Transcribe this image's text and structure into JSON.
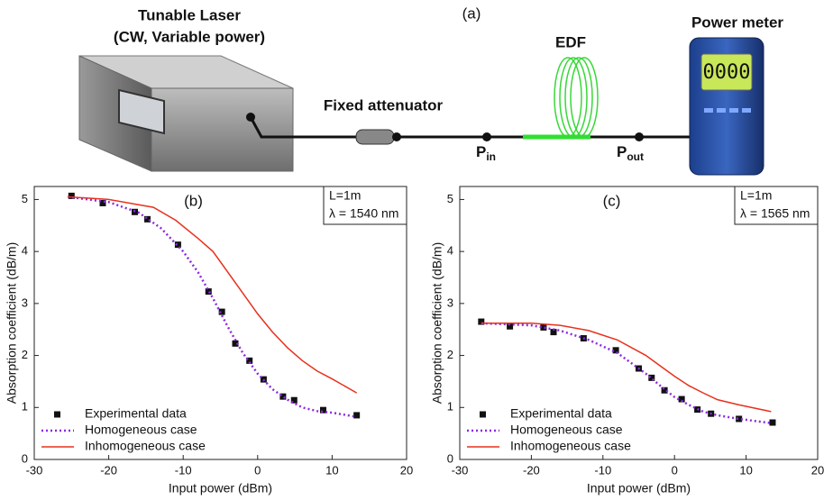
{
  "diagram": {
    "label": "(a)",
    "laser_title": "Tunable Laser",
    "laser_subtitle": "(CW, Variable power)",
    "attenuator": "Fixed attenuator",
    "fiber": "EDF",
    "meter": "Power meter",
    "meter_display": "0000",
    "p_in": {
      "main": "P",
      "sub": "in"
    },
    "p_out": {
      "main": "P",
      "sub": "out"
    }
  },
  "chart_data": [
    {
      "type": "line",
      "title": "(b)",
      "annotations": [
        "L=1m",
        "λ = 1540 nm"
      ],
      "x_label": "Input power (dBm)",
      "y_label": "Absorption coefficient (dB/m)",
      "xlim": [
        -30,
        20
      ],
      "ylim": [
        0,
        5.25
      ],
      "xticks": [
        -30,
        -20,
        -10,
        0,
        10,
        20
      ],
      "yticks": [
        0,
        1,
        2,
        3,
        4,
        5
      ],
      "legend": "lower-left",
      "series": [
        {
          "name": "Experimental data",
          "color": "#111111",
          "style": "markers",
          "x": [
            -25,
            -20.8,
            -16.5,
            -14.8,
            -10.7,
            -6.6,
            -4.8,
            -3.0,
            -1.1,
            0.8,
            3.4,
            4.9,
            8.8,
            13.3
          ],
          "values": [
            5.07,
            4.93,
            4.76,
            4.62,
            4.13,
            3.23,
            2.84,
            2.23,
            1.9,
            1.54,
            1.21,
            1.14,
            0.95,
            0.85
          ]
        },
        {
          "name": "Homogeneous case",
          "color": "#8a2be2",
          "style": "dotted",
          "x": [
            -25.5,
            -20,
            -16,
            -13,
            -10,
            -8,
            -6,
            -4,
            -2,
            0,
            2,
            4,
            6,
            8,
            10,
            13.3
          ],
          "values": [
            5.05,
            4.95,
            4.75,
            4.45,
            4.0,
            3.6,
            3.1,
            2.55,
            2.05,
            1.65,
            1.35,
            1.15,
            1.0,
            0.93,
            0.9,
            0.82
          ]
        },
        {
          "name": "Inhomogeneous case",
          "color": "#e8301c",
          "style": "solid",
          "x": [
            -25.5,
            -20,
            -16,
            -14,
            -11,
            -8,
            -6,
            -4,
            -2,
            0,
            2,
            4,
            6,
            8,
            10,
            13.3
          ],
          "values": [
            5.05,
            5.0,
            4.9,
            4.85,
            4.6,
            4.25,
            4.0,
            3.6,
            3.2,
            2.8,
            2.45,
            2.15,
            1.9,
            1.7,
            1.55,
            1.28
          ]
        }
      ]
    },
    {
      "type": "line",
      "title": "(c)",
      "annotations": [
        "L=1m",
        "λ = 1565 nm"
      ],
      "x_label": "Input power (dBm)",
      "y_label": "Absorption coefficient (dB/m)",
      "xlim": [
        -30,
        20
      ],
      "ylim": [
        0,
        5.25
      ],
      "xticks": [
        -30,
        -20,
        -10,
        0,
        10,
        20
      ],
      "yticks": [
        0,
        1,
        2,
        3,
        4,
        5
      ],
      "legend": "lower-left",
      "series": [
        {
          "name": "Experimental data",
          "color": "#111111",
          "style": "markers",
          "x": [
            -27,
            -23,
            -18.3,
            -16.9,
            -12.7,
            -8.2,
            -5,
            -3.2,
            -1.4,
            1.0,
            3.2,
            5.1,
            9.0,
            13.7
          ],
          "values": [
            2.65,
            2.56,
            2.54,
            2.45,
            2.33,
            2.1,
            1.75,
            1.57,
            1.33,
            1.16,
            0.96,
            0.88,
            0.78,
            0.71
          ]
        },
        {
          "name": "Homogeneous case",
          "color": "#8a2be2",
          "style": "dotted",
          "x": [
            -27,
            -20,
            -16,
            -12,
            -8,
            -4,
            -2,
            0,
            2,
            4,
            6,
            9,
            13.5
          ],
          "values": [
            2.62,
            2.58,
            2.48,
            2.3,
            2.05,
            1.65,
            1.42,
            1.2,
            1.05,
            0.92,
            0.85,
            0.78,
            0.7
          ]
        },
        {
          "name": "Inhomogeneous case",
          "color": "#e8301c",
          "style": "solid",
          "x": [
            -27,
            -20,
            -16,
            -12,
            -8,
            -4,
            -2,
            0,
            2,
            4,
            6,
            9,
            13.5
          ],
          "values": [
            2.62,
            2.62,
            2.58,
            2.48,
            2.3,
            2.0,
            1.8,
            1.6,
            1.42,
            1.28,
            1.15,
            1.05,
            0.92
          ]
        }
      ]
    }
  ]
}
